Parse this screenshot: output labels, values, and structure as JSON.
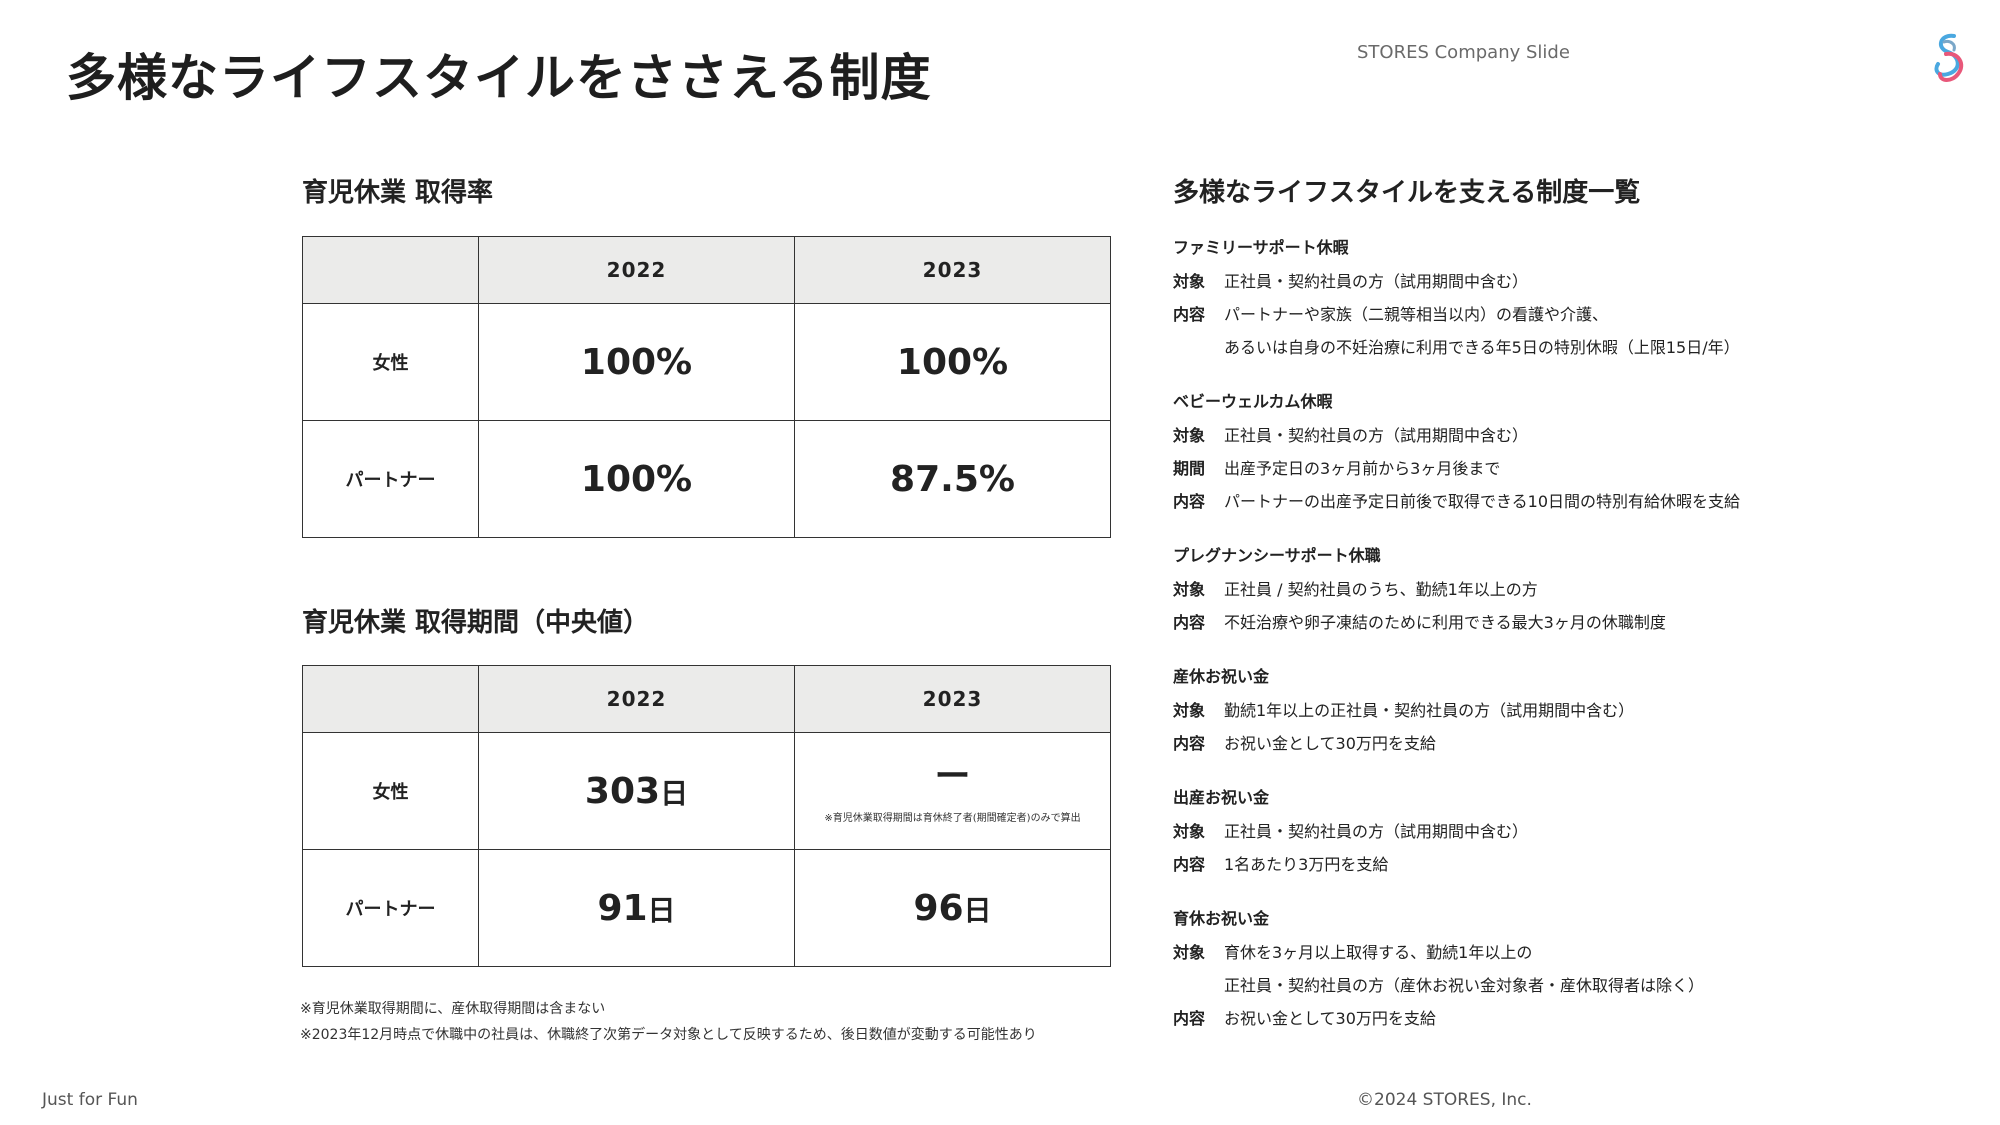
{
  "header": {
    "title": "多様なライフスタイルをささえる制度",
    "brand": "STORES Company Slide"
  },
  "leave_rate": {
    "heading": "育児休業 取得率",
    "columns": [
      "",
      "2022",
      "2023"
    ],
    "rows": [
      {
        "label": "女性",
        "v2022": "100%",
        "v2023": "100%"
      },
      {
        "label": "パートナー",
        "v2022": "100%",
        "v2023": "87.5%"
      }
    ]
  },
  "leave_period": {
    "heading": "育児休業 取得期間（中央値）",
    "columns": [
      "",
      "2022",
      "2023"
    ],
    "unit": "日",
    "rows": [
      {
        "label": "女性",
        "v2022": "303",
        "v2023": "ー",
        "v2023_note": "※育児休業取得期間は育休終了者(期間確定者)のみで算出"
      },
      {
        "label": "パートナー",
        "v2022": "91",
        "v2023": "96"
      }
    ],
    "notes": [
      "※育児休業取得期間に、産休取得期間は含まない",
      "※2023年12月時点で休職中の社員は、休職終了次第データ対象として反映するため、後日数値が変動する可能性あり"
    ]
  },
  "systems": {
    "heading": "多様なライフスタイルを支える制度一覧",
    "items": [
      {
        "title": "ファミリーサポート休暇",
        "lines": [
          {
            "label": "対象",
            "text": "正社員・契約社員の方（試用期間中含む）"
          },
          {
            "label": "内容",
            "text": "パートナーや家族（二親等相当以内）の看護や介護、"
          },
          {
            "label": "",
            "text": "あるいは自身の不妊治療に利用できる年5日の特別休暇（上限15日/年）"
          }
        ]
      },
      {
        "title": "ベビーウェルカム休暇",
        "lines": [
          {
            "label": "対象",
            "text": "正社員・契約社員の方（試用期間中含む）"
          },
          {
            "label": "期間",
            "text": "出産予定日の3ヶ月前から3ヶ月後まで"
          },
          {
            "label": "内容",
            "text": "パートナーの出産予定日前後で取得できる10日間の特別有給休暇を支給"
          }
        ]
      },
      {
        "title": "プレグナンシーサポート休職",
        "lines": [
          {
            "label": "対象",
            "text": "正社員 / 契約社員のうち、勤続1年以上の方"
          },
          {
            "label": "内容",
            "text": "不妊治療や卵子凍結のために利用できる最大3ヶ月の休職制度"
          }
        ]
      },
      {
        "title": "産休お祝い金",
        "lines": [
          {
            "label": "対象",
            "text": "勤続1年以上の正社員・契約社員の方（試用期間中含む）"
          },
          {
            "label": "内容",
            "text": "お祝い金として30万円を支給"
          }
        ]
      },
      {
        "title": "出産お祝い金",
        "lines": [
          {
            "label": "対象",
            "text": "正社員・契約社員の方（試用期間中含む）"
          },
          {
            "label": "内容",
            "text": "1名あたり3万円を支給"
          }
        ]
      },
      {
        "title": "育休お祝い金",
        "lines": [
          {
            "label": "対象",
            "text": "育休を3ヶ月以上取得する、勤続1年以上の"
          },
          {
            "label": "",
            "text": "正社員・契約社員の方（産休お祝い金対象者・産休取得者は除く）"
          },
          {
            "label": "内容",
            "text": "お祝い金として30万円を支給"
          }
        ]
      }
    ]
  },
  "footer": {
    "left": "Just for Fun",
    "right": "©2024 STORES, Inc."
  },
  "colors": {
    "table_header_bg": "#ebebea",
    "logo_blue": "#4aa8e0",
    "logo_pink": "#e8587a"
  }
}
